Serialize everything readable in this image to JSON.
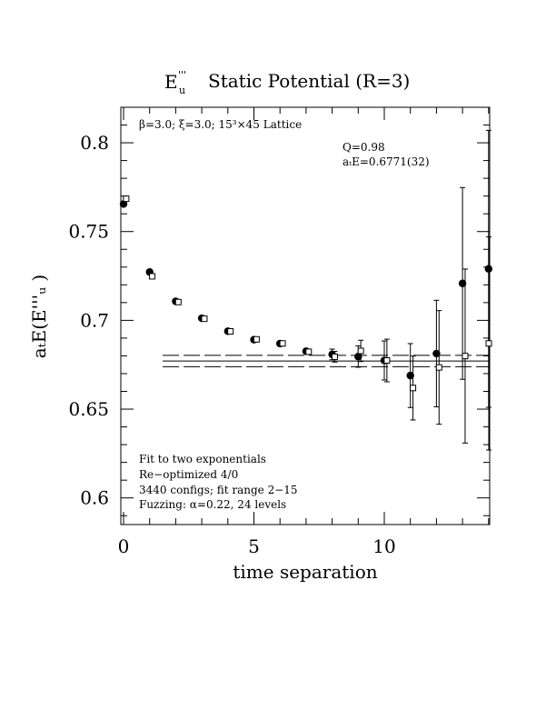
{
  "chart_data": {
    "type": "scatter",
    "title_main": "E",
    "title_sup": "'''",
    "title_sub": "u",
    "title_rest": "Static Potential (R=3)",
    "subtitle": "β=3.0; ξ=3.0; 15³×45 Lattice",
    "fit_stats": [
      "Q=0.98",
      "aₜE=0.6771(32)"
    ],
    "notes": [
      "Fit to two exponentials",
      "Re−optimized 4/0",
      "3440 configs; fit range 2−15",
      "Fuzzing: α=0.22, 24 levels"
    ],
    "xlabel": "time separation",
    "ylabel": "aₜE(E'''ᵤ )",
    "xlim": [
      0,
      14
    ],
    "ylim": [
      0.585,
      0.82
    ],
    "x_ticks": [
      0,
      5,
      10
    ],
    "x_tick_labels": [
      "0",
      "5",
      "10"
    ],
    "y_ticks": [
      0.6,
      0.65,
      0.7,
      0.75,
      0.8
    ],
    "y_tick_labels": [
      "0.6",
      "0.65",
      "0.7",
      "0.75",
      "0.8"
    ],
    "fit": {
      "value": 0.6771,
      "error": 0.0032,
      "x_start": 1.5,
      "x_end": 14
    },
    "series": [
      {
        "marker": "filled-circle",
        "points": [
          {
            "x": 0,
            "y": 0.7655,
            "err": 0.001
          },
          {
            "x": 1,
            "y": 0.7272,
            "err": 0.001
          },
          {
            "x": 2,
            "y": 0.7107,
            "err": 0.001
          },
          {
            "x": 3,
            "y": 0.7012,
            "err": 0.001
          },
          {
            "x": 4,
            "y": 0.6939,
            "err": 0.001
          },
          {
            "x": 5,
            "y": 0.6891,
            "err": 0.001
          },
          {
            "x": 6,
            "y": 0.6869,
            "err": 0.001
          },
          {
            "x": 7,
            "y": 0.6826,
            "err": 0.0015
          },
          {
            "x": 8,
            "y": 0.6808,
            "err": 0.003
          },
          {
            "x": 9,
            "y": 0.6796,
            "err": 0.006
          },
          {
            "x": 10,
            "y": 0.6774,
            "err": 0.011
          },
          {
            "x": 11,
            "y": 0.6689,
            "err": 0.018
          },
          {
            "x": 12,
            "y": 0.6813,
            "err": 0.03
          },
          {
            "x": 13,
            "y": 0.7208,
            "err": 0.054
          },
          {
            "x": 14,
            "y": 0.729,
            "err": 0.078
          }
        ]
      },
      {
        "marker": "open-square",
        "points": [
          {
            "x": 0.1,
            "y": 0.7685,
            "err": 0.001
          },
          {
            "x": 1.1,
            "y": 0.7248,
            "err": 0.001
          },
          {
            "x": 2.1,
            "y": 0.7103,
            "err": 0.001
          },
          {
            "x": 3.1,
            "y": 0.7009,
            "err": 0.001
          },
          {
            "x": 4.1,
            "y": 0.6938,
            "err": 0.001
          },
          {
            "x": 5.1,
            "y": 0.6893,
            "err": 0.001
          },
          {
            "x": 6.1,
            "y": 0.687,
            "err": 0.001
          },
          {
            "x": 7.1,
            "y": 0.6823,
            "err": 0.0015
          },
          {
            "x": 8.1,
            "y": 0.6795,
            "err": 0.003
          },
          {
            "x": 9.1,
            "y": 0.6828,
            "err": 0.006
          },
          {
            "x": 10.1,
            "y": 0.6774,
            "err": 0.012
          },
          {
            "x": 11.1,
            "y": 0.6619,
            "err": 0.018
          },
          {
            "x": 12.1,
            "y": 0.6735,
            "err": 0.032
          },
          {
            "x": 13.1,
            "y": 0.6799,
            "err": 0.049
          },
          {
            "x": 14.1,
            "y": 0.687,
            "err": 0.06
          }
        ]
      }
    ]
  }
}
